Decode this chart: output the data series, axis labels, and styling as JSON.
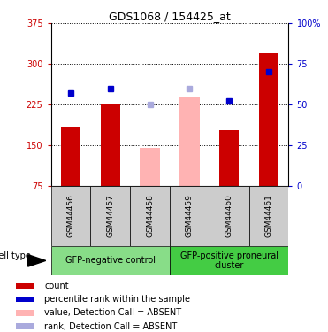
{
  "title": "GDS1068 / 154425_at",
  "samples": [
    "GSM44456",
    "GSM44457",
    "GSM44458",
    "GSM44459",
    "GSM44460",
    "GSM44461"
  ],
  "count_values": [
    185,
    225,
    145,
    240,
    178,
    320
  ],
  "rank_values": [
    57,
    60,
    50,
    60,
    52,
    70
  ],
  "absent": [
    false,
    false,
    true,
    true,
    false,
    false
  ],
  "y_min": 75,
  "y_max": 375,
  "y_ticks": [
    75,
    150,
    225,
    300,
    375
  ],
  "y_tick_labels": [
    "75",
    "150",
    "225",
    "300",
    "375"
  ],
  "rank_y_ticks": [
    0,
    25,
    50,
    75,
    100
  ],
  "rank_y_labels": [
    "0",
    "25",
    "50",
    "75",
    "100%"
  ],
  "group1_label": "GFP-negative control",
  "group2_label": "GFP-positive proneural\ncluster",
  "cell_type_label": "cell type",
  "bar_color": "#cc0000",
  "bar_color_absent": "#ffb3b3",
  "rank_color": "#0000cc",
  "rank_color_absent": "#aaaadd",
  "group1_color": "#88dd88",
  "group2_color": "#44cc44",
  "sample_box_color": "#cccccc",
  "bg_color": "#ffffff",
  "legend_items": [
    {
      "color": "#cc0000",
      "label": "count"
    },
    {
      "color": "#0000cc",
      "label": "percentile rank within the sample"
    },
    {
      "color": "#ffb3b3",
      "label": "value, Detection Call = ABSENT"
    },
    {
      "color": "#aaaadd",
      "label": "rank, Detection Call = ABSENT"
    }
  ]
}
